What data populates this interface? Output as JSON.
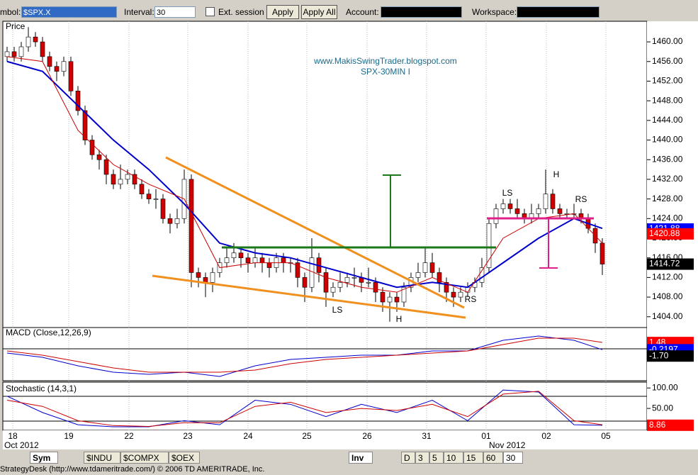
{
  "toolbar": {
    "symbol_label": "mbol:",
    "symbol": "$SPX.X",
    "interval_label": "Interval:",
    "interval": "30",
    "ext_session": "Ext. session",
    "apply": "Apply",
    "apply_all": "Apply All",
    "account_label": "Account:",
    "workspace_label": "Workspace:"
  },
  "chart_data": {
    "type": "candlestick",
    "title": "Price",
    "watermark": [
      "www.MakisSwingTrader.blogspot.com",
      "SPX-30MIN I"
    ],
    "ohlc": [
      [
        1457,
        1459,
        1456,
        1458
      ],
      [
        1458,
        1459,
        1456,
        1457
      ],
      [
        1457,
        1460,
        1456,
        1459
      ],
      [
        1459,
        1463,
        1458,
        1461
      ],
      [
        1461,
        1462,
        1459,
        1460
      ],
      [
        1460,
        1461,
        1456,
        1457
      ],
      [
        1457,
        1458,
        1454,
        1455
      ],
      [
        1455,
        1456,
        1452,
        1454
      ],
      [
        1454,
        1457,
        1453,
        1456
      ],
      [
        1456,
        1457,
        1449,
        1450
      ],
      [
        1450,
        1451,
        1445,
        1446
      ],
      [
        1446,
        1447,
        1439,
        1440
      ],
      [
        1440,
        1441,
        1436,
        1437
      ],
      [
        1437,
        1438,
        1434,
        1436
      ],
      [
        1436,
        1437,
        1431,
        1433
      ],
      [
        1433,
        1434,
        1430,
        1431
      ],
      [
        1431,
        1435,
        1430,
        1432
      ],
      [
        1432,
        1434,
        1431,
        1433
      ],
      [
        1433,
        1434,
        1430,
        1431
      ],
      [
        1431,
        1432,
        1428,
        1429
      ],
      [
        1429,
        1430,
        1427,
        1428
      ],
      [
        1428,
        1430,
        1426,
        1428
      ],
      [
        1428,
        1429,
        1423,
        1424
      ],
      [
        1424,
        1425,
        1421,
        1423
      ],
      [
        1423,
        1426,
        1422,
        1424
      ],
      [
        1424,
        1434,
        1423,
        1432
      ],
      [
        1432,
        1433,
        1410,
        1413
      ],
      [
        1413,
        1414,
        1410,
        1412
      ],
      [
        1412,
        1413,
        1408,
        1411
      ],
      [
        1411,
        1414,
        1409,
        1413
      ],
      [
        1413,
        1416,
        1412,
        1415
      ],
      [
        1415,
        1418,
        1414,
        1416
      ],
      [
        1416,
        1419,
        1415,
        1417
      ],
      [
        1417,
        1418,
        1414,
        1416
      ],
      [
        1416,
        1417,
        1413,
        1415
      ],
      [
        1415,
        1418,
        1414,
        1416
      ],
      [
        1416,
        1417,
        1413,
        1415
      ],
      [
        1415,
        1416,
        1412,
        1414
      ],
      [
        1414,
        1417,
        1413,
        1416
      ],
      [
        1416,
        1417,
        1413,
        1415
      ],
      [
        1415,
        1416,
        1413,
        1415
      ],
      [
        1415,
        1416,
        1410,
        1412
      ],
      [
        1412,
        1413,
        1407,
        1410
      ],
      [
        1410,
        1420,
        1409,
        1416
      ],
      [
        1416,
        1417,
        1411,
        1413
      ],
      [
        1413,
        1414,
        1406,
        1409
      ],
      [
        1409,
        1411,
        1408,
        1410
      ],
      [
        1410,
        1413,
        1409,
        1411
      ],
      [
        1411,
        1413,
        1410,
        1412
      ],
      [
        1412,
        1414,
        1410,
        1412
      ],
      [
        1412,
        1413,
        1409,
        1411
      ],
      [
        1411,
        1414,
        1410,
        1411
      ],
      [
        1411,
        1412,
        1407,
        1409
      ],
      [
        1409,
        1410,
        1405,
        1407
      ],
      [
        1407,
        1409,
        1403,
        1408
      ],
      [
        1408,
        1409,
        1405,
        1407
      ],
      [
        1407,
        1411,
        1406,
        1410
      ],
      [
        1410,
        1413,
        1409,
        1412
      ],
      [
        1412,
        1415,
        1411,
        1413
      ],
      [
        1413,
        1418,
        1412,
        1415
      ],
      [
        1415,
        1417,
        1412,
        1413
      ],
      [
        1413,
        1414,
        1409,
        1411
      ],
      [
        1411,
        1412,
        1407,
        1409
      ],
      [
        1409,
        1410,
        1406,
        1408
      ],
      [
        1408,
        1410,
        1407,
        1409
      ],
      [
        1409,
        1411,
        1408,
        1410
      ],
      [
        1410,
        1412,
        1409,
        1411
      ],
      [
        1411,
        1416,
        1410,
        1414
      ],
      [
        1414,
        1424,
        1413,
        1423
      ],
      [
        1423,
        1427,
        1422,
        1426
      ],
      [
        1426,
        1428,
        1425,
        1427
      ],
      [
        1427,
        1428,
        1425,
        1426
      ],
      [
        1426,
        1428,
        1424,
        1425
      ],
      [
        1425,
        1426,
        1423,
        1424
      ],
      [
        1424,
        1427,
        1423,
        1425
      ],
      [
        1425,
        1427,
        1424,
        1426
      ],
      [
        1426,
        1434,
        1425,
        1429
      ],
      [
        1429,
        1430,
        1425,
        1426
      ],
      [
        1426,
        1427,
        1424,
        1425
      ],
      [
        1425,
        1426,
        1424,
        1425
      ],
      [
        1425,
        1427,
        1424,
        1425
      ],
      [
        1425,
        1426,
        1423,
        1424
      ],
      [
        1424,
        1425,
        1421,
        1422
      ],
      [
        1422,
        1423,
        1417,
        1419
      ],
      [
        1419,
        1420,
        1412.5,
        1414.72
      ]
    ],
    "up_color": "#ffffff",
    "down_color": "#d00000",
    "moving_averages": [
      {
        "color": "#0000cc",
        "x": [
          0,
          5,
          10,
          15,
          20,
          25,
          30,
          35,
          40,
          45,
          50,
          55,
          60,
          65,
          70,
          75,
          80,
          84
        ],
        "values": [
          1456,
          1454,
          1447,
          1440,
          1434,
          1427,
          1419,
          1417,
          1416,
          1414,
          1412,
          1410,
          1411,
          1410,
          1415,
          1420,
          1424,
          1422
        ]
      },
      {
        "color": "#cc0000",
        "x": [
          0,
          5,
          10,
          15,
          20,
          25,
          30,
          35,
          40,
          45,
          50,
          55,
          60,
          65,
          70,
          75,
          80,
          84
        ],
        "values": [
          1457,
          1456,
          1442,
          1435,
          1431,
          1428,
          1414,
          1415,
          1415,
          1412,
          1410,
          1409,
          1412,
          1409,
          1420,
          1424,
          1425,
          1419
        ]
      }
    ],
    "ylim": [
      1401.8,
      1464.2
    ],
    "yticks": [
      {
        "value": 1404,
        "label": "1404.00"
      },
      {
        "value": 1408,
        "label": "1408.00"
      },
      {
        "value": 1412,
        "label": "1412.00"
      },
      {
        "value": 1416,
        "label": "1416.00"
      },
      {
        "value": 1420,
        "label": "1420.00"
      },
      {
        "value": 1424,
        "label": "1424.00"
      },
      {
        "value": 1428,
        "label": "1428.00"
      },
      {
        "value": 1432,
        "label": "1432.00"
      },
      {
        "value": 1436,
        "label": "1436.00"
      },
      {
        "value": 1440,
        "label": "1440.00"
      },
      {
        "value": 1444,
        "label": "1444.00"
      },
      {
        "value": 1448,
        "label": "1448.00"
      },
      {
        "value": 1452,
        "label": "1452.00"
      },
      {
        "value": 1456,
        "label": "1456.00"
      },
      {
        "value": 1460,
        "label": "1460.00"
      }
    ],
    "price_tags": [
      {
        "value": 1421.88,
        "color": "#0000ff"
      },
      {
        "value": 1420.88,
        "color": "#ff0000"
      },
      {
        "value": 1414.72,
        "color": "#000000"
      }
    ],
    "annotations": [
      "LS",
      "H",
      "RS",
      "LS",
      "H",
      "RS"
    ],
    "days": [
      "18",
      "19",
      "22",
      "23",
      "24",
      "25",
      "26",
      "31",
      "01",
      "02",
      "05"
    ],
    "months": [
      "Oct 2012",
      "Nov 2012"
    ]
  },
  "macd": {
    "title": "MACD (Close,12,26,9)",
    "ylim": [
      -7.5,
      5
    ],
    "x": [
      0,
      5,
      10,
      15,
      20,
      25,
      30,
      35,
      40,
      45,
      50,
      55,
      60,
      65,
      70,
      75,
      80,
      84
    ],
    "series": [
      {
        "color": "#0000cc",
        "values": [
          -1,
          -2,
          -4,
          -5.5,
          -6,
          -5.5,
          -6.5,
          -4,
          -2.5,
          -2,
          -1.5,
          -1.5,
          -0.5,
          -0.5,
          2,
          3,
          2,
          -0.2
        ]
      },
      {
        "color": "#cc0000",
        "values": [
          -0.5,
          -1.5,
          -3,
          -4.5,
          -5.5,
          -5.5,
          -5.5,
          -5,
          -3.5,
          -2.5,
          -2,
          -1.5,
          -1,
          -0.5,
          1,
          2.5,
          2.5,
          1.5
        ]
      }
    ],
    "tags": [
      {
        "value": 1.48,
        "color": "#ff0000"
      },
      {
        "value": -0.2197,
        "color": "#0000ff"
      },
      {
        "value": -1.7,
        "label": "-1.70",
        "color": "#000000"
      }
    ]
  },
  "stochastic": {
    "title": "Stochastic (14,3,1)",
    "ylim": [
      -3.6,
      114.3
    ],
    "yticks": [
      {
        "value": 50,
        "label": "50.00"
      },
      {
        "value": 100,
        "label": "100.00"
      }
    ],
    "x": [
      0,
      5,
      10,
      15,
      20,
      25,
      30,
      35,
      40,
      45,
      50,
      55,
      60,
      65,
      70,
      75,
      80,
      84
    ],
    "series": [
      {
        "color": "#0000cc",
        "values": [
          80,
          40,
          10,
          5,
          5,
          20,
          10,
          70,
          60,
          30,
          60,
          40,
          70,
          20,
          95,
          90,
          10,
          8.86
        ]
      },
      {
        "color": "#cc0000",
        "values": [
          70,
          55,
          20,
          8,
          6,
          15,
          15,
          55,
          65,
          40,
          50,
          45,
          60,
          30,
          85,
          92,
          20,
          10
        ]
      }
    ],
    "tags": [
      {
        "value": 8.86,
        "color": "#ff0000"
      }
    ]
  },
  "tabs": [
    "Sym",
    "$INDU",
    "$COMPX",
    "$OEX"
  ],
  "interval_tabs": [
    "Inv",
    "D",
    "3",
    "5",
    "10",
    "15",
    "60",
    "30"
  ],
  "status": "StrategyDesk (http://www.tdameritrade.com/) © 2006 TD AMERITRADE, Inc."
}
